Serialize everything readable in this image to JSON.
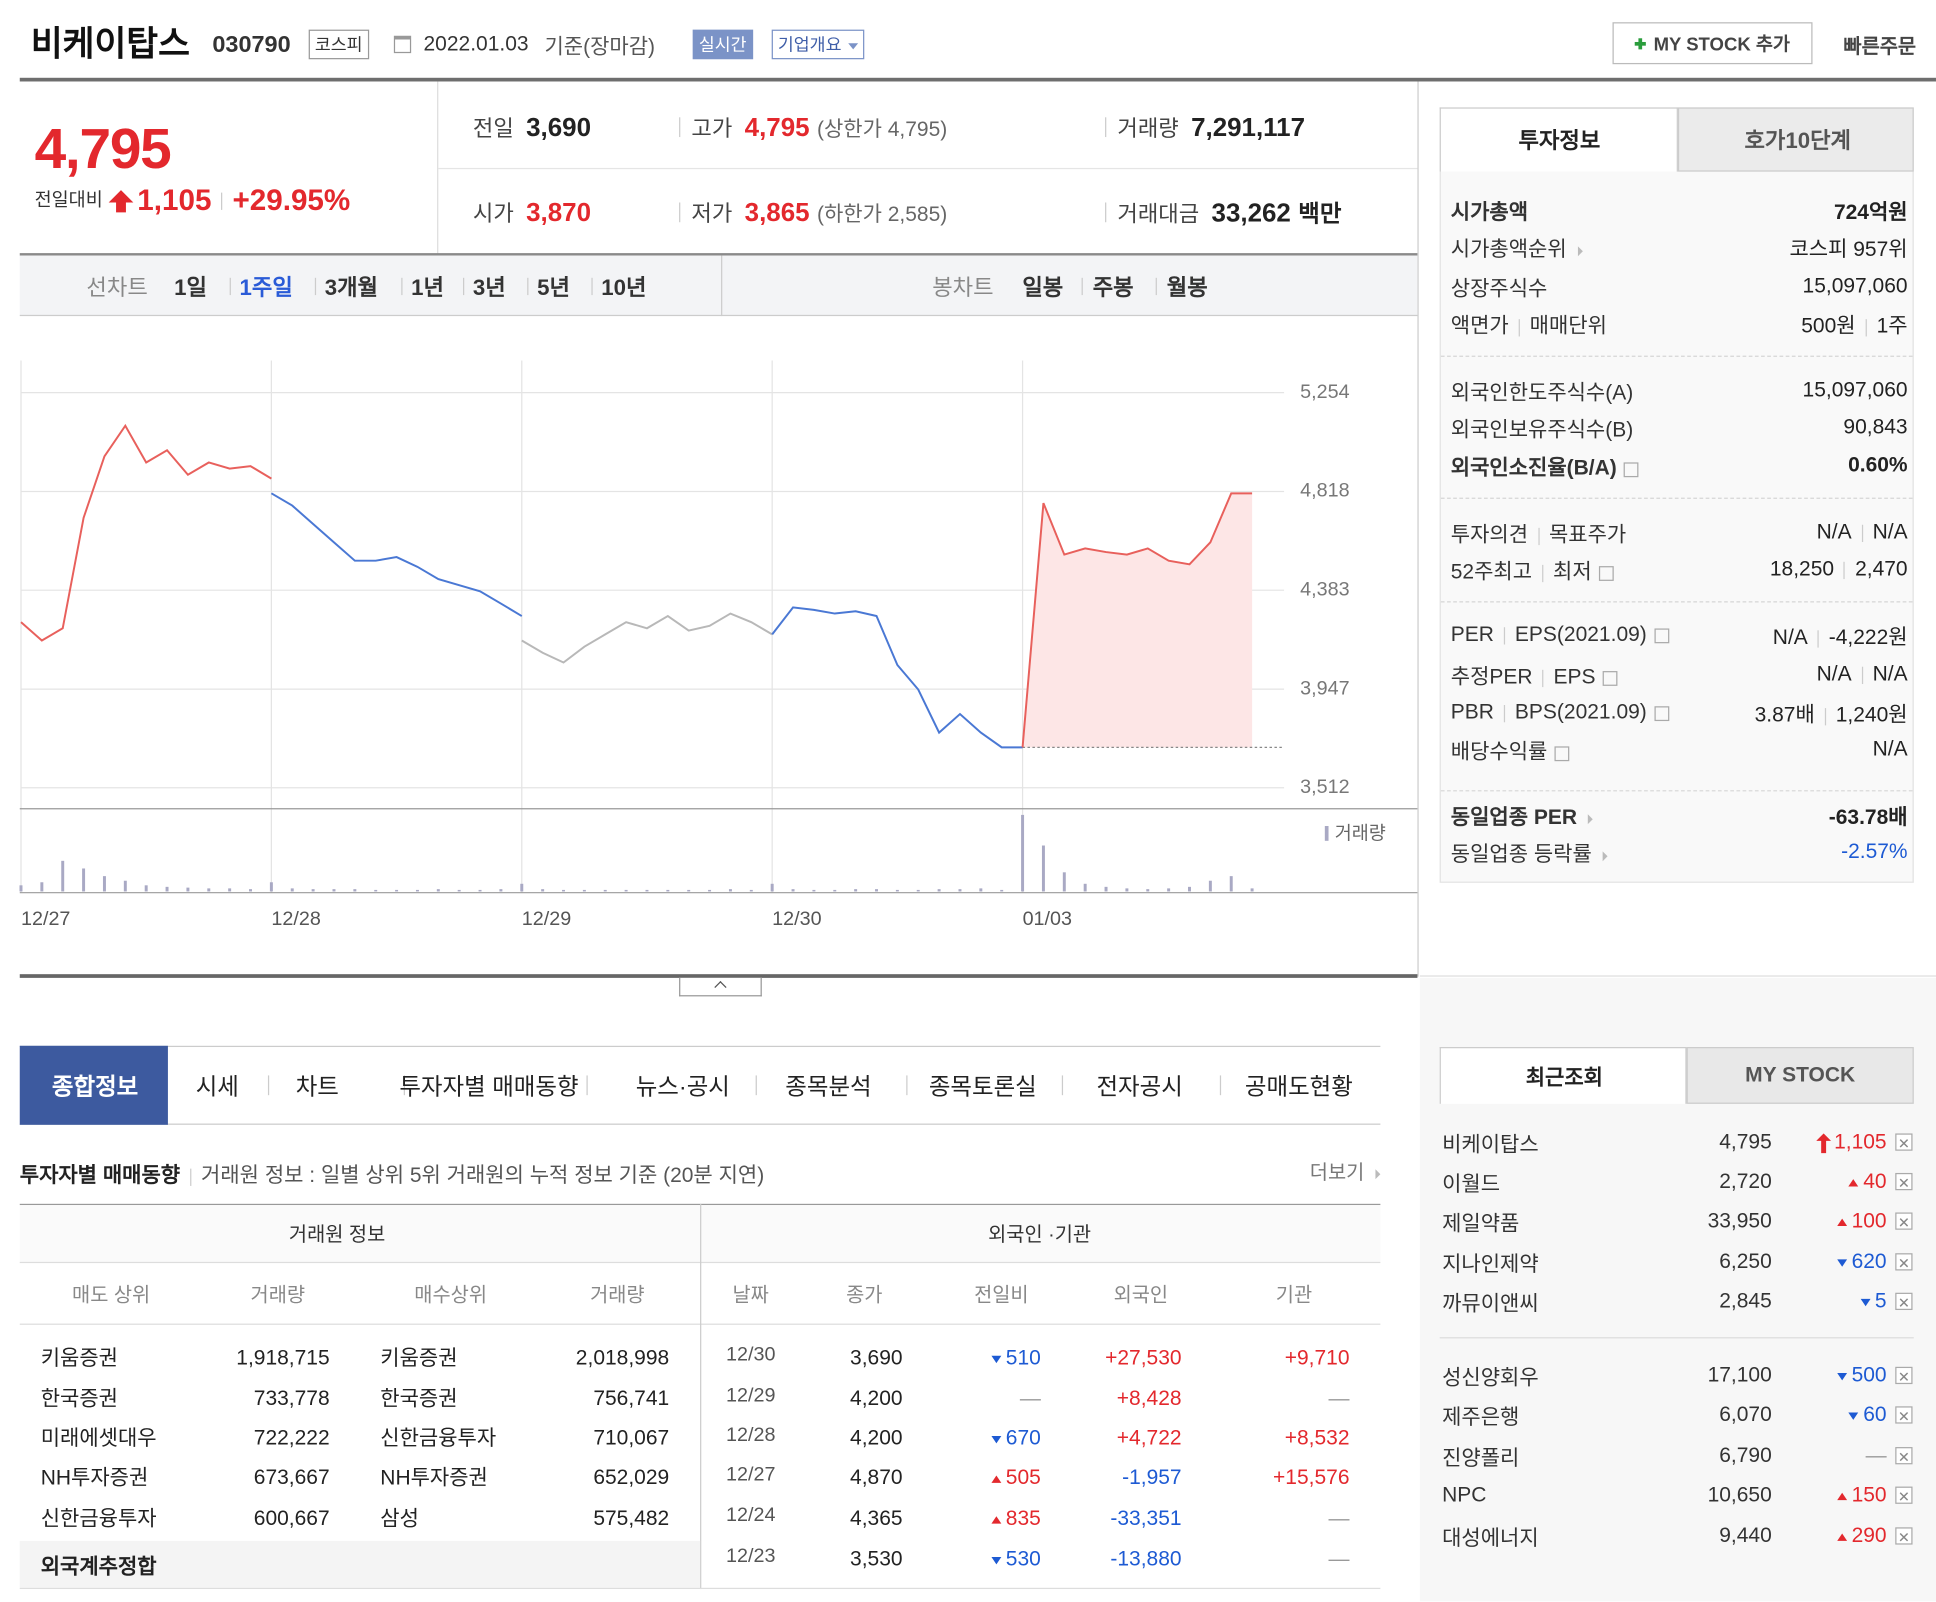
{
  "header": {
    "name": "비케이탑스",
    "code": "030790",
    "market": "코스피",
    "date": "2022.01.03",
    "basis": "기준(장마감)",
    "realtime": "실시간",
    "overview": "기업개요",
    "mystock": "MY STOCK 추가",
    "quick": "빠른주문"
  },
  "quote": {
    "price": "4,795",
    "change_label": "전일대비",
    "change": "1,105",
    "rate": "+29.95%",
    "items": [
      {
        "label": "전일",
        "value": "3,690"
      },
      {
        "label": "고가",
        "value": "4,795",
        "note": "(상한가 4,795)",
        "color": "red"
      },
      {
        "label": "거래량",
        "value": "7,291,117"
      },
      {
        "label": "시가",
        "value": "3,870",
        "color": "red"
      },
      {
        "label": "저가",
        "value": "3,865",
        "note": "(하한가 2,585)",
        "color": "red"
      },
      {
        "label": "거래대금",
        "value": "33,262",
        "unit": "백만"
      }
    ]
  },
  "chart_tabs": {
    "line": "선차트",
    "periods": [
      "1일",
      "1주일",
      "3개월",
      "1년",
      "3년",
      "5년",
      "10년"
    ],
    "active": 1,
    "candle": "봉차트",
    "candle_periods": [
      "일봉",
      "주봉",
      "월봉"
    ]
  },
  "chart_data": {
    "type": "line",
    "categories": [
      "12/27",
      null,
      null,
      null,
      null,
      null,
      null,
      null,
      null,
      null,
      null,
      null,
      "12/28",
      null,
      null,
      null,
      null,
      null,
      null,
      null,
      null,
      null,
      null,
      null,
      "12/29",
      null,
      null,
      null,
      null,
      null,
      null,
      null,
      null,
      null,
      null,
      null,
      "12/30",
      null,
      null,
      null,
      null,
      null,
      null,
      null,
      null,
      null,
      null,
      null,
      "01/03",
      null,
      null,
      null,
      null,
      null,
      null,
      null,
      null,
      null,
      null,
      null
    ],
    "ylim": [
      3512,
      5254
    ],
    "yticks": [
      {
        "value": 5254,
        "label": "5,254"
      },
      {
        "value": 4818,
        "label": "4,818"
      },
      {
        "value": 4383,
        "label": "4,383"
      },
      {
        "value": 3947,
        "label": "3,947"
      },
      {
        "value": 3512,
        "label": "3,512"
      }
    ],
    "grid": true,
    "baseline": 3690,
    "series": [
      {
        "color": "#e8605c",
        "values": [
          4242,
          4161,
          4215,
          4702,
          4973,
          5108,
          4946,
          5000,
          4892,
          4946,
          4919,
          4930,
          4875,
          null,
          null,
          null,
          null,
          null,
          null,
          null,
          null,
          null,
          null,
          null,
          null,
          null,
          null,
          null,
          null,
          null,
          null,
          null,
          null,
          null,
          null,
          null,
          null,
          null,
          null,
          null,
          null,
          null,
          null,
          null,
          null,
          null,
          null,
          null,
          null,
          null,
          null,
          null,
          null,
          null,
          null,
          null,
          null,
          null,
          null,
          null
        ]
      },
      {
        "color": "#4a78d4",
        "values": [
          null,
          null,
          null,
          null,
          null,
          null,
          null,
          null,
          null,
          null,
          null,
          null,
          4810,
          4756,
          4675,
          4594,
          4513,
          4513,
          4529,
          4486,
          4432,
          4405,
          4378,
          4324,
          4269,
          null,
          null,
          null,
          null,
          null,
          null,
          null,
          null,
          null,
          null,
          null,
          null,
          null,
          null,
          null,
          null,
          null,
          null,
          null,
          null,
          null,
          null,
          null,
          null,
          null,
          null,
          null,
          null,
          null,
          null,
          null,
          null,
          null,
          null,
          null
        ]
      },
      {
        "color": "#b8b8b8",
        "values": [
          null,
          null,
          null,
          null,
          null,
          null,
          null,
          null,
          null,
          null,
          null,
          null,
          null,
          null,
          null,
          null,
          null,
          null,
          null,
          null,
          null,
          null,
          null,
          null,
          4161,
          4107,
          4064,
          4134,
          4188,
          4242,
          4215,
          4269,
          4205,
          4226,
          4280,
          4242,
          4188,
          null,
          null,
          null,
          null,
          null,
          null,
          null,
          null,
          null,
          null,
          null,
          null,
          null,
          null,
          null,
          null,
          null,
          null,
          null,
          null,
          null,
          null,
          null
        ]
      },
      {
        "color": "#4a78d4",
        "values": [
          null,
          null,
          null,
          null,
          null,
          null,
          null,
          null,
          null,
          null,
          null,
          null,
          null,
          null,
          null,
          null,
          null,
          null,
          null,
          null,
          null,
          null,
          null,
          null,
          null,
          null,
          null,
          null,
          null,
          null,
          null,
          null,
          null,
          null,
          null,
          null,
          4188,
          4307,
          4296,
          4280,
          4290,
          4269,
          4053,
          3945,
          3755,
          3837,
          3755,
          3690,
          3690,
          null,
          null,
          null,
          null,
          null,
          null,
          null,
          null,
          null,
          null,
          null
        ]
      },
      {
        "color": "#e8605c",
        "fill": "#fde6e6",
        "values": [
          null,
          null,
          null,
          null,
          null,
          null,
          null,
          null,
          null,
          null,
          null,
          null,
          null,
          null,
          null,
          null,
          null,
          null,
          null,
          null,
          null,
          null,
          null,
          null,
          null,
          null,
          null,
          null,
          null,
          null,
          null,
          null,
          null,
          null,
          null,
          null,
          null,
          null,
          null,
          null,
          null,
          null,
          null,
          null,
          null,
          null,
          null,
          null,
          3690,
          4767,
          4540,
          4567,
          4551,
          4540,
          4567,
          4513,
          4497,
          4594,
          4810,
          4810
        ]
      }
    ],
    "volume": {
      "name": "거래량",
      "color": "#a9a9c4",
      "vlim": [
        0,
        100
      ],
      "values": [
        8,
        12,
        40,
        30,
        20,
        14,
        8,
        6,
        5,
        4,
        4,
        3,
        12,
        4,
        3,
        3,
        3,
        2,
        2,
        2,
        3,
        2,
        2,
        3,
        10,
        3,
        2,
        2,
        2,
        2,
        2,
        2,
        2,
        2,
        3,
        2,
        10,
        3,
        2,
        2,
        3,
        3,
        2,
        2,
        3,
        3,
        4,
        2,
        100,
        60,
        25,
        10,
        6,
        4,
        3,
        4,
        6,
        14,
        20,
        4
      ]
    }
  },
  "info": {
    "tabs": [
      "투자정보",
      "호가10단계"
    ],
    "groups": [
      [
        {
          "label": [
            "시가총액"
          ],
          "value": [
            "724억원"
          ],
          "bold": true
        },
        {
          "label": [
            "시가총액순위"
          ],
          "value": [
            "코스피 957위"
          ],
          "link": true
        },
        {
          "label": [
            "상장주식수"
          ],
          "value": [
            "15,097,060"
          ]
        },
        {
          "label": [
            "액면가",
            "매매단위"
          ],
          "value": [
            "500원",
            "1주"
          ]
        }
      ],
      [
        {
          "label": [
            "외국인한도주식수(A)"
          ],
          "value": [
            "15,097,060"
          ]
        },
        {
          "label": [
            "외국인보유주식수(B)"
          ],
          "value": [
            "90,843"
          ]
        },
        {
          "label": [
            "외국인소진율(B/A)"
          ],
          "value": [
            "0.60%"
          ],
          "bold": true,
          "help": true
        }
      ],
      [
        {
          "label": [
            "투자의견",
            "목표주가"
          ],
          "value": [
            "N/A",
            "N/A"
          ]
        },
        {
          "label": [
            "52주최고",
            "최저"
          ],
          "value": [
            "18,250",
            "2,470"
          ],
          "help": true
        }
      ],
      [
        {
          "label": [
            "PER",
            "EPS(2021.09)"
          ],
          "value": [
            "N/A",
            "-4,222원"
          ],
          "help": true
        },
        {
          "label": [
            "추정PER",
            "EPS"
          ],
          "value": [
            "N/A",
            "N/A"
          ],
          "help": true
        },
        {
          "label": [
            "PBR",
            "BPS(2021.09)"
          ],
          "value": [
            "3.87배",
            "1,240원"
          ],
          "help": true
        },
        {
          "label": [
            "배당수익률"
          ],
          "value": [
            "N/A"
          ],
          "help": true
        }
      ],
      [
        {
          "label": [
            "동일업종 PER"
          ],
          "value": [
            "-63.78배"
          ],
          "bold": true,
          "link": true
        },
        {
          "label": [
            "동일업종 등락률"
          ],
          "value": [
            "-2.57%"
          ],
          "color": "blue",
          "link": true
        }
      ]
    ]
  },
  "tabs": [
    "종합정보",
    "시세",
    "차트",
    "투자자별 매매동향",
    "뉴스·공시",
    "종목분석",
    "종목토론실",
    "전자공시",
    "공매도현황"
  ],
  "section": {
    "title": "투자자별 매매동향",
    "desc": "거래원 정보 : 일별 상위 5위 거래원의 누적 정보 기준 (20분 지연)",
    "more": "더보기"
  },
  "brokers": {
    "group": "거래원 정보",
    "headers": [
      "매도 상위",
      "거래량",
      "매수상위",
      "거래량"
    ],
    "rows": [
      [
        "키움증권",
        "1,918,715",
        "키움증권",
        "2,018,998"
      ],
      [
        "한국증권",
        "733,778",
        "한국증권",
        "756,741"
      ],
      [
        "미래에셋대우",
        "722,222",
        "신한금융투자",
        "710,067"
      ],
      [
        "NH투자증권",
        "673,667",
        "NH투자증권",
        "652,029"
      ],
      [
        "신한금융투자",
        "600,667",
        "삼성",
        "575,482"
      ]
    ],
    "footer": "외국계추정합"
  },
  "foreign": {
    "group": "외국인 ·기관",
    "headers": [
      "날짜",
      "종가",
      "전일비",
      "외국인",
      "기관"
    ],
    "rows": [
      {
        "date": "12/30",
        "close": "3,690",
        "dir": "down",
        "change": "510",
        "foreign": "+27,530",
        "inst": "+9,710"
      },
      {
        "date": "12/29",
        "close": "4,200",
        "dir": "flat",
        "change": "—",
        "foreign": "+8,428",
        "inst": "—"
      },
      {
        "date": "12/28",
        "close": "4,200",
        "dir": "down",
        "change": "670",
        "foreign": "+4,722",
        "inst": "+8,532"
      },
      {
        "date": "12/27",
        "close": "4,870",
        "dir": "up",
        "change": "505",
        "foreign": "-1,957",
        "inst": "+15,576"
      },
      {
        "date": "12/24",
        "close": "4,365",
        "dir": "up",
        "change": "835",
        "foreign": "-33,351",
        "inst": "—"
      },
      {
        "date": "12/23",
        "close": "3,530",
        "dir": "down",
        "change": "530",
        "foreign": "-13,880",
        "inst": "—"
      }
    ]
  },
  "recent": {
    "tabs": [
      "최근조회",
      "MY STOCK"
    ],
    "groups": [
      [
        {
          "name": "비케이탑스",
          "price": "4,795",
          "dir": "upper",
          "change": "1,105"
        },
        {
          "name": "이월드",
          "price": "2,720",
          "dir": "up",
          "change": "40"
        },
        {
          "name": "제일약품",
          "price": "33,950",
          "dir": "up",
          "change": "100"
        },
        {
          "name": "지나인제약",
          "price": "6,250",
          "dir": "down",
          "change": "620"
        },
        {
          "name": "까뮤이앤씨",
          "price": "2,845",
          "dir": "down",
          "change": "5"
        }
      ],
      [
        {
          "name": "성신양회우",
          "price": "17,100",
          "dir": "down",
          "change": "500"
        },
        {
          "name": "제주은행",
          "price": "6,070",
          "dir": "down",
          "change": "60"
        },
        {
          "name": "진양폴리",
          "price": "6,790",
          "dir": "flat",
          "change": "—"
        },
        {
          "name": "NPC",
          "price": "10,650",
          "dir": "up",
          "change": "150"
        },
        {
          "name": "대성에너지",
          "price": "9,440",
          "dir": "up",
          "change": "290"
        }
      ]
    ]
  }
}
